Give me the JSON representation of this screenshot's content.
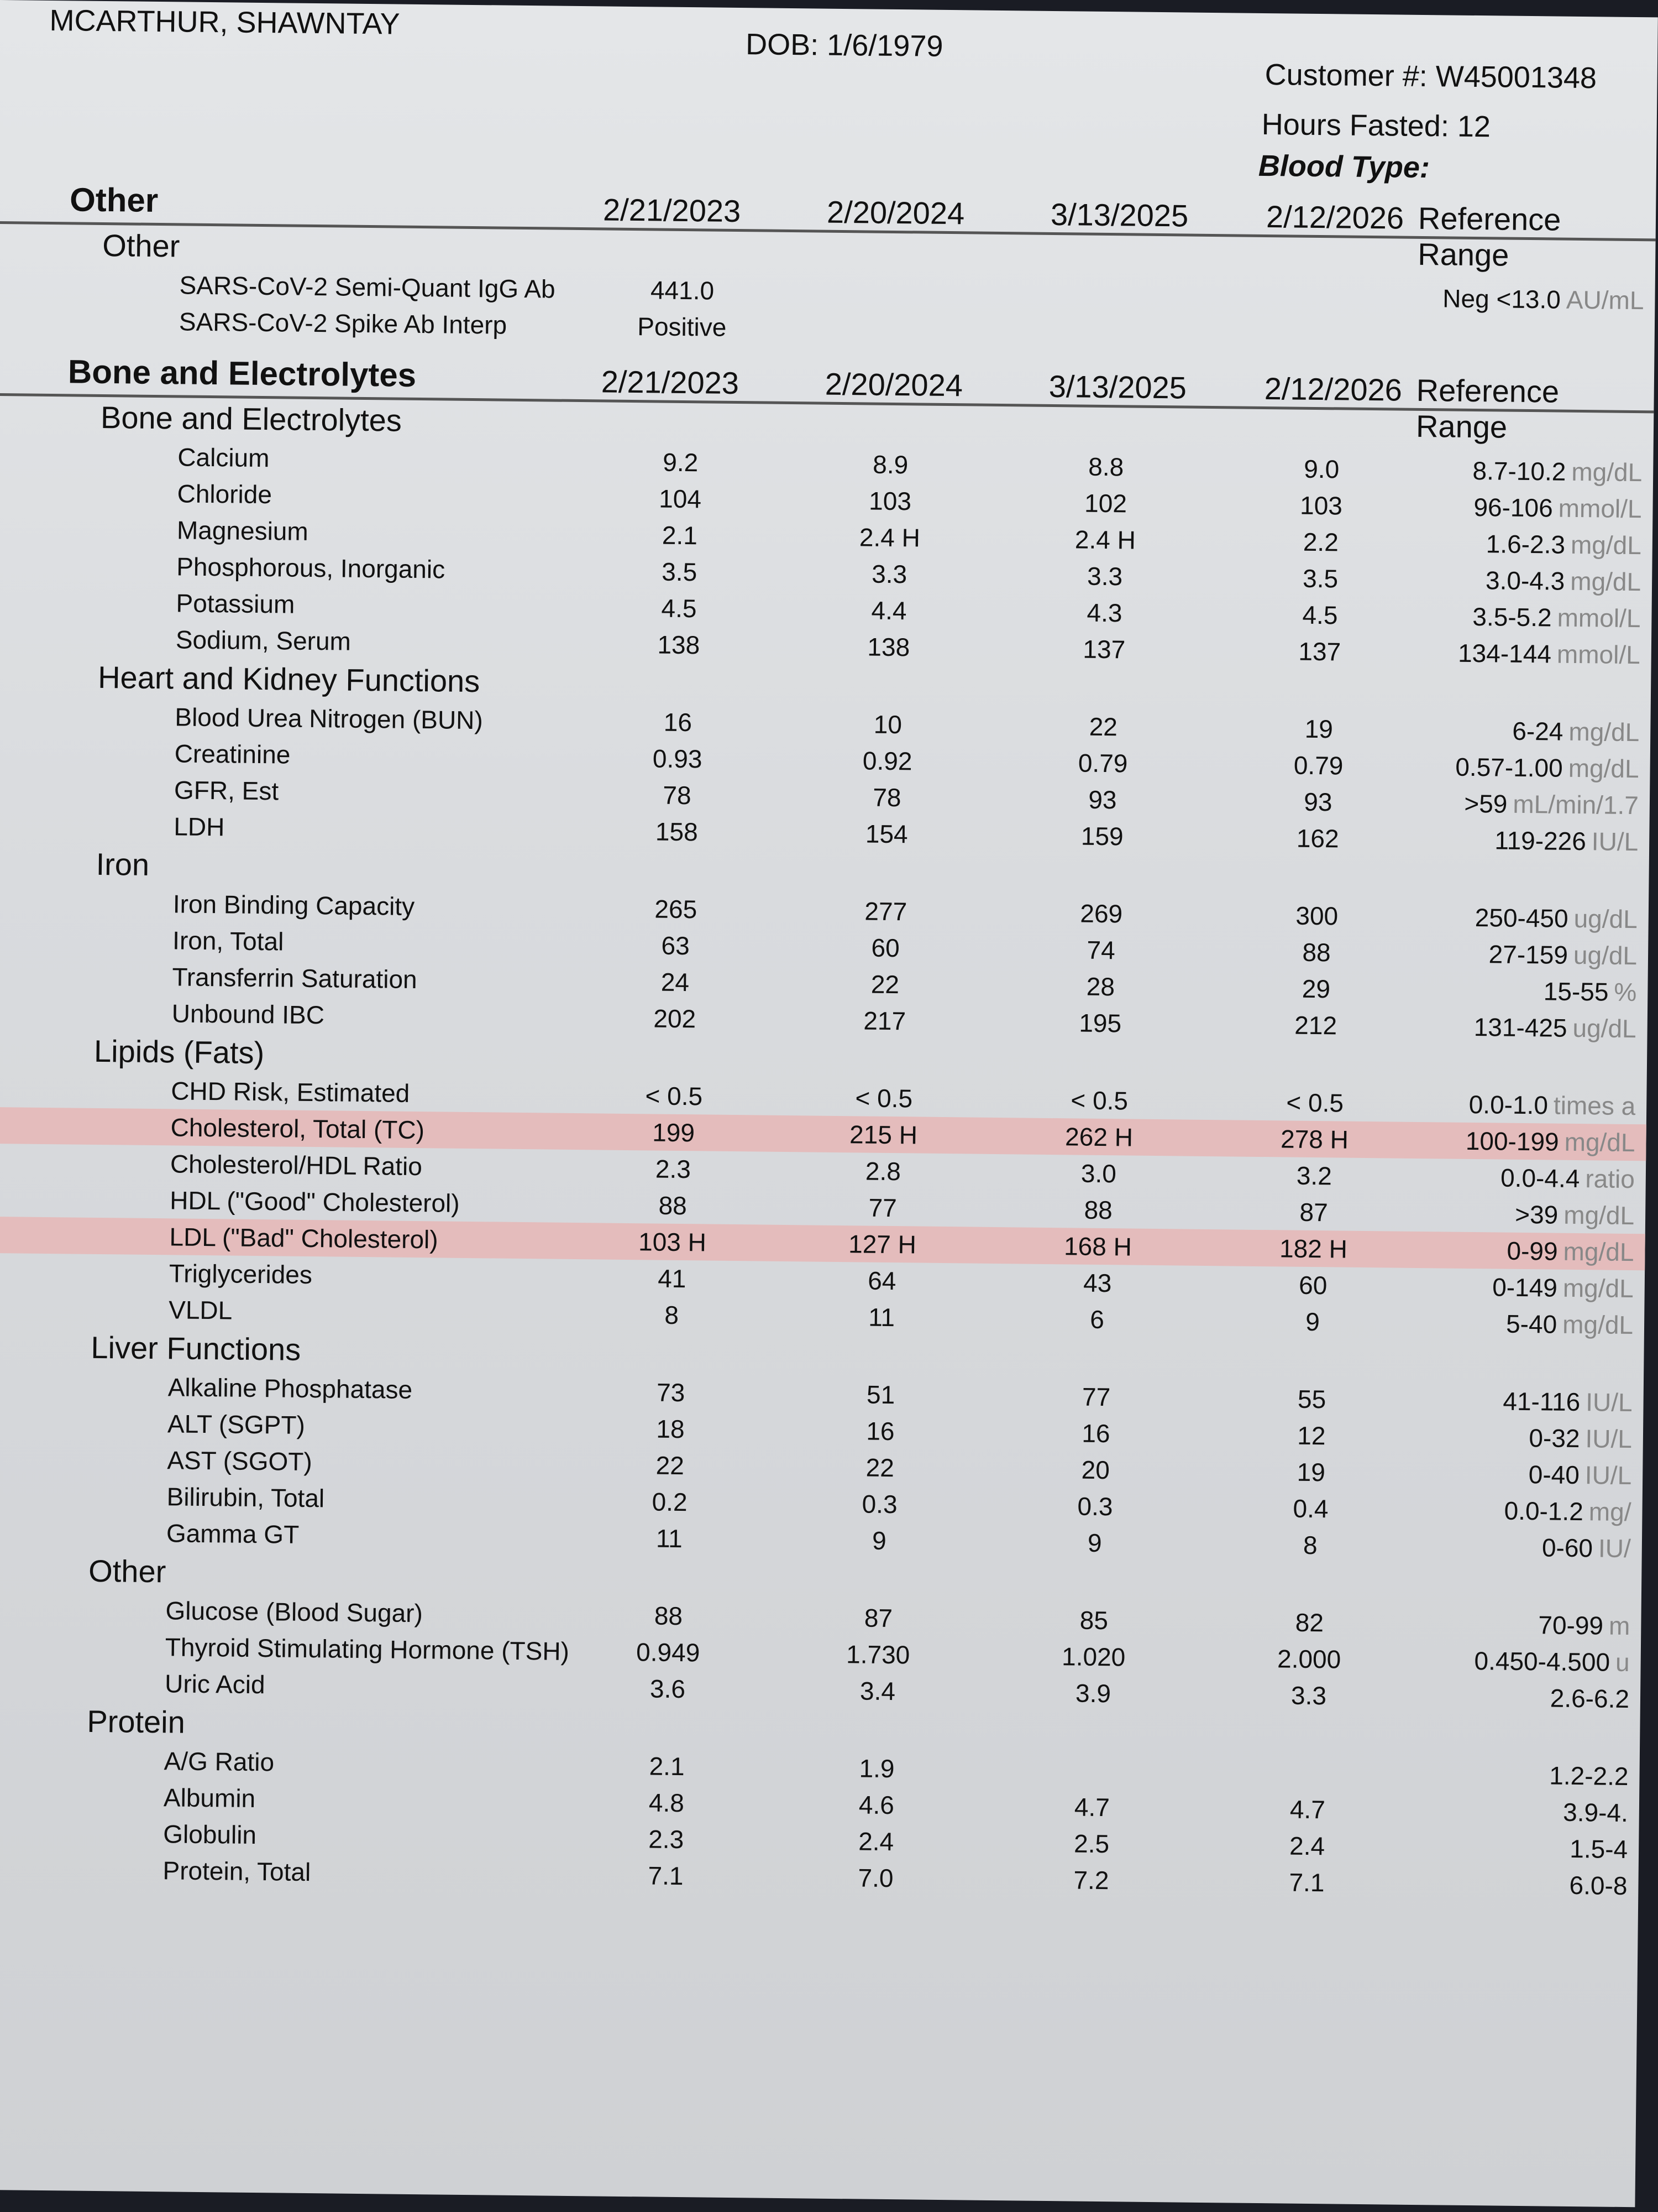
{
  "patient": {
    "name": "MCARTHUR, SHAWNTAY",
    "dob": "DOB:  1/6/1979",
    "customer": "Customer #:  W45001348",
    "hours_fasted": "Hours Fasted:  12",
    "blood_type": "Blood Type:"
  },
  "highlight_color": "#e4bcbc",
  "sections": [
    {
      "title": "Other",
      "dates": [
        "2/21/2023",
        "2/20/2024",
        "3/13/2025",
        "2/12/2026"
      ],
      "ref_label": "Reference Range",
      "groups": [
        {
          "title": "Other",
          "rows": [
            {
              "label": "SARS-CoV-2 Semi-Quant IgG Ab",
              "values": [
                "441.0",
                "",
                "",
                ""
              ],
              "range": "Neg <13.0",
              "unit": "AU/mL"
            },
            {
              "label": "SARS-CoV-2 Spike Ab Interp",
              "values": [
                "Positive",
                "",
                "",
                ""
              ],
              "range": "",
              "unit": ""
            }
          ]
        }
      ]
    },
    {
      "title": "Bone and Electrolytes",
      "dates": [
        "2/21/2023",
        "2/20/2024",
        "3/13/2025",
        "2/12/2026"
      ],
      "ref_label": "Reference Range",
      "groups": [
        {
          "title": "Bone and Electrolytes",
          "rows": [
            {
              "label": "Calcium",
              "values": [
                "9.2",
                "8.9",
                "8.8",
                "9.0"
              ],
              "range": "8.7-10.2",
              "unit": "mg/dL"
            },
            {
              "label": "Chloride",
              "values": [
                "104",
                "103",
                "102",
                "103"
              ],
              "range": "96-106",
              "unit": "mmol/L"
            },
            {
              "label": "Magnesium",
              "values": [
                "2.1",
                "2.4 H",
                "2.4 H",
                "2.2"
              ],
              "range": "1.6-2.3",
              "unit": "mg/dL"
            },
            {
              "label": "Phosphorous, Inorganic",
              "values": [
                "3.5",
                "3.3",
                "3.3",
                "3.5"
              ],
              "range": "3.0-4.3",
              "unit": "mg/dL"
            },
            {
              "label": "Potassium",
              "values": [
                "4.5",
                "4.4",
                "4.3",
                "4.5"
              ],
              "range": "3.5-5.2",
              "unit": "mmol/L"
            },
            {
              "label": "Sodium, Serum",
              "values": [
                "138",
                "138",
                "137",
                "137"
              ],
              "range": "134-144",
              "unit": "mmol/L"
            }
          ]
        },
        {
          "title": "Heart and Kidney Functions",
          "rows": [
            {
              "label": "Blood Urea Nitrogen (BUN)",
              "values": [
                "16",
                "10",
                "22",
                "19"
              ],
              "range": "6-24",
              "unit": "mg/dL"
            },
            {
              "label": "Creatinine",
              "values": [
                "0.93",
                "0.92",
                "0.79",
                "0.79"
              ],
              "range": "0.57-1.00",
              "unit": "mg/dL"
            },
            {
              "label": "GFR, Est",
              "values": [
                "78",
                "78",
                "93",
                "93"
              ],
              "range": ">59",
              "unit": "mL/min/1.7"
            },
            {
              "label": "LDH",
              "values": [
                "158",
                "154",
                "159",
                "162"
              ],
              "range": "119-226",
              "unit": "IU/L"
            }
          ]
        },
        {
          "title": "Iron",
          "rows": [
            {
              "label": "Iron Binding Capacity",
              "values": [
                "265",
                "277",
                "269",
                "300"
              ],
              "range": "250-450",
              "unit": "ug/dL"
            },
            {
              "label": "Iron, Total",
              "values": [
                "63",
                "60",
                "74",
                "88"
              ],
              "range": "27-159",
              "unit": "ug/dL"
            },
            {
              "label": "Transferrin Saturation",
              "values": [
                "24",
                "22",
                "28",
                "29"
              ],
              "range": "15-55",
              "unit": "%"
            },
            {
              "label": "Unbound IBC",
              "values": [
                "202",
                "217",
                "195",
                "212"
              ],
              "range": "131-425",
              "unit": "ug/dL"
            }
          ]
        },
        {
          "title": "Lipids (Fats)",
          "rows": [
            {
              "label": "CHD Risk, Estimated",
              "values": [
                "< 0.5",
                "< 0.5",
                "< 0.5",
                "< 0.5"
              ],
              "range": "0.0-1.0",
              "unit": "times a"
            },
            {
              "label": "Cholesterol, Total (TC)",
              "values": [
                "199",
                "215 H",
                "262 H",
                "278 H"
              ],
              "range": "100-199",
              "unit": "mg/dL",
              "highlight": true
            },
            {
              "label": "Cholesterol/HDL Ratio",
              "values": [
                "2.3",
                "2.8",
                "3.0",
                "3.2"
              ],
              "range": "0.0-4.4",
              "unit": "ratio"
            },
            {
              "label": "HDL (\"Good\" Cholesterol)",
              "values": [
                "88",
                "77",
                "88",
                "87"
              ],
              "range": ">39",
              "unit": "mg/dL"
            },
            {
              "label": "LDL (\"Bad\" Cholesterol)",
              "values": [
                "103 H",
                "127 H",
                "168 H",
                "182 H"
              ],
              "range": "0-99",
              "unit": "mg/dL",
              "highlight": true
            },
            {
              "label": "Triglycerides",
              "values": [
                "41",
                "64",
                "43",
                "60"
              ],
              "range": "0-149",
              "unit": "mg/dL"
            },
            {
              "label": "VLDL",
              "values": [
                "8",
                "11",
                "6",
                "9"
              ],
              "range": "5-40",
              "unit": "mg/dL"
            }
          ]
        },
        {
          "title": "Liver Functions",
          "rows": [
            {
              "label": "Alkaline Phosphatase",
              "values": [
                "73",
                "51",
                "77",
                "55"
              ],
              "range": "41-116",
              "unit": "IU/L"
            },
            {
              "label": "ALT (SGPT)",
              "values": [
                "18",
                "16",
                "16",
                "12"
              ],
              "range": "0-32",
              "unit": "IU/L"
            },
            {
              "label": "AST (SGOT)",
              "values": [
                "22",
                "22",
                "20",
                "19"
              ],
              "range": "0-40",
              "unit": "IU/L"
            },
            {
              "label": "Bilirubin, Total",
              "values": [
                "0.2",
                "0.3",
                "0.3",
                "0.4"
              ],
              "range": "0.0-1.2",
              "unit": "mg/"
            },
            {
              "label": "Gamma GT",
              "values": [
                "11",
                "9",
                "9",
                "8"
              ],
              "range": "0-60",
              "unit": "IU/"
            }
          ]
        },
        {
          "title": "Other",
          "rows": [
            {
              "label": "Glucose (Blood Sugar)",
              "values": [
                "88",
                "87",
                "85",
                "82"
              ],
              "range": "70-99",
              "unit": "m"
            },
            {
              "label": "Thyroid Stimulating Hormone (TSH)",
              "values": [
                "0.949",
                "1.730",
                "1.020",
                "2.000"
              ],
              "range": "0.450-4.500",
              "unit": "u"
            },
            {
              "label": "Uric Acid",
              "values": [
                "3.6",
                "3.4",
                "3.9",
                "3.3"
              ],
              "range": "2.6-6.2",
              "unit": ""
            }
          ]
        },
        {
          "title": "Protein",
          "rows": [
            {
              "label": "A/G Ratio",
              "values": [
                "2.1",
                "1.9",
                "",
                ""
              ],
              "range": "1.2-2.2",
              "unit": ""
            },
            {
              "label": "Albumin",
              "values": [
                "4.8",
                "4.6",
                "4.7",
                "4.7"
              ],
              "range": "3.9-4.",
              "unit": ""
            },
            {
              "label": "Globulin",
              "values": [
                "2.3",
                "2.4",
                "2.5",
                "2.4"
              ],
              "range": "1.5-4",
              "unit": ""
            },
            {
              "label": "Protein, Total",
              "values": [
                "7.1",
                "7.0",
                "7.2",
                "7.1"
              ],
              "range": "6.0-8",
              "unit": ""
            }
          ]
        }
      ]
    }
  ]
}
